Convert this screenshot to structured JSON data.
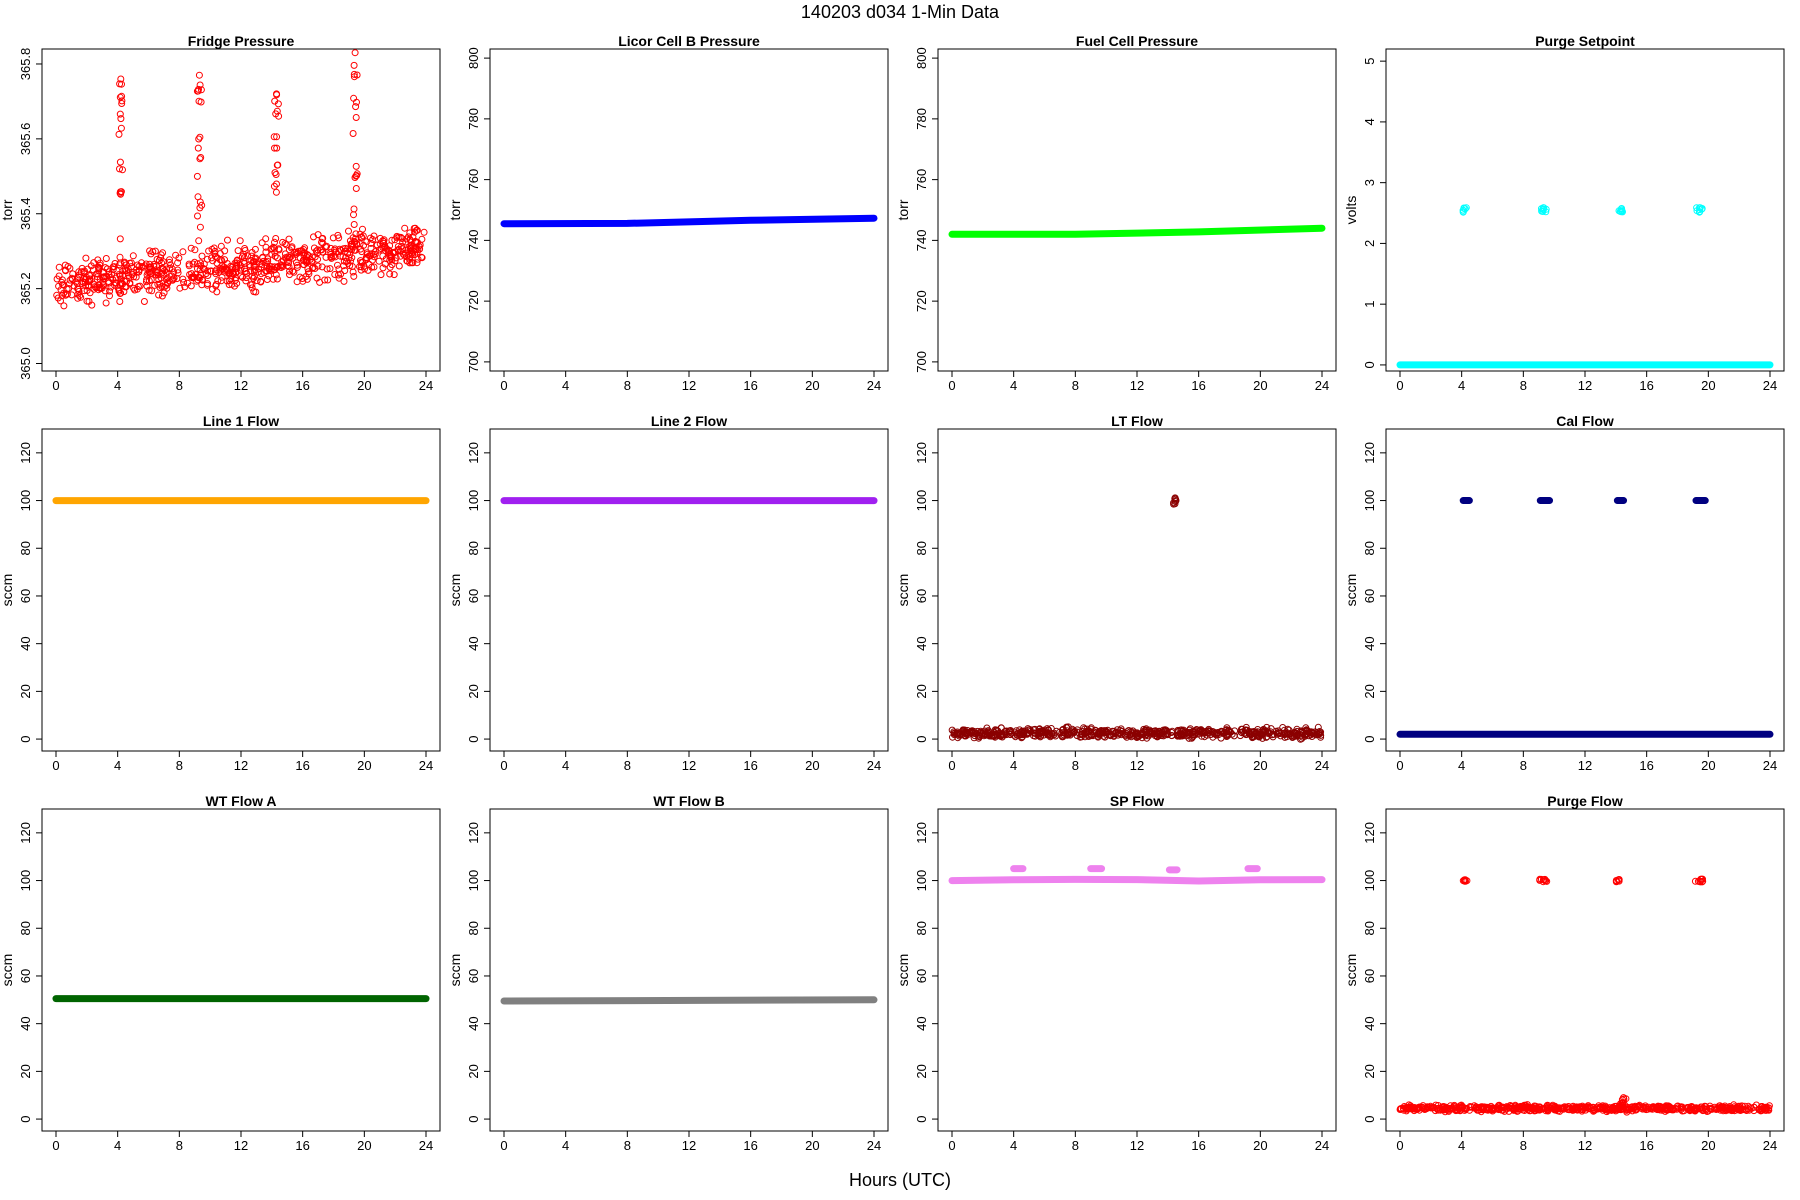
{
  "title": "140203    d034    1-Min Data",
  "xlabel": "Hours (UTC)",
  "chart_data": [
    {
      "type": "scatter",
      "title": "Fridge Pressure",
      "ylabel": "torr",
      "color": "#ff0000",
      "marker": "open-circle",
      "xlim": [
        0,
        24
      ],
      "ylim": [
        364.98,
        365.84
      ],
      "xticks": [
        0,
        4,
        8,
        12,
        16,
        20,
        24
      ],
      "yticks": [
        365.0,
        365.2,
        365.4,
        365.6,
        365.8
      ],
      "ytick_labels": [
        "365.0",
        "365.2",
        "365.4",
        "365.6",
        "365.8"
      ],
      "series": [
        {
          "kind": "scatter-band",
          "x_range": [
            0,
            24
          ],
          "y_start": 365.21,
          "y_end": 365.31,
          "spread": 0.085,
          "count": 800
        },
        {
          "kind": "spike",
          "x_center": 4.2,
          "x_width": 0.25,
          "y_from": 365.3,
          "y_to": 365.76,
          "count": 18
        },
        {
          "kind": "spike",
          "x_center": 9.3,
          "x_width": 0.3,
          "y_from": 365.3,
          "y_to": 365.77,
          "count": 20
        },
        {
          "kind": "spike",
          "x_center": 14.3,
          "x_width": 0.3,
          "y_from": 365.3,
          "y_to": 365.72,
          "count": 18
        },
        {
          "kind": "spike",
          "x_center": 19.4,
          "x_width": 0.3,
          "y_from": 365.3,
          "y_to": 365.83,
          "count": 20
        }
      ]
    },
    {
      "type": "scatter",
      "title": "Licor Cell B Pressure",
      "ylabel": "torr",
      "color": "#0000ff",
      "marker": "filled",
      "xlim": [
        0,
        24
      ],
      "ylim": [
        697,
        803
      ],
      "xticks": [
        0,
        4,
        8,
        12,
        16,
        20,
        24
      ],
      "yticks": [
        700,
        720,
        740,
        760,
        780,
        800
      ],
      "ytick_labels": [
        "700",
        "720",
        "740",
        "760",
        "780",
        "800"
      ],
      "series": [
        {
          "kind": "line",
          "x": [
            0,
            8,
            16,
            24
          ],
          "y": [
            745.5,
            745.6,
            746.6,
            747.3
          ]
        }
      ]
    },
    {
      "type": "scatter",
      "title": "Fuel Cell Pressure",
      "ylabel": "torr",
      "color": "#00ff00",
      "marker": "filled",
      "xlim": [
        0,
        24
      ],
      "ylim": [
        697,
        803
      ],
      "xticks": [
        0,
        4,
        8,
        12,
        16,
        20,
        24
      ],
      "yticks": [
        700,
        720,
        740,
        760,
        780,
        800
      ],
      "ytick_labels": [
        "700",
        "720",
        "740",
        "760",
        "780",
        "800"
      ],
      "series": [
        {
          "kind": "line",
          "x": [
            0,
            8,
            16,
            24
          ],
          "y": [
            742,
            742,
            742.8,
            744
          ]
        }
      ]
    },
    {
      "type": "scatter",
      "title": "Purge Setpoint",
      "ylabel": "volts",
      "color": "#00ffff",
      "marker": "open-circle",
      "xlim": [
        0,
        24
      ],
      "ylim": [
        -0.1,
        5.2
      ],
      "xticks": [
        0,
        4,
        8,
        12,
        16,
        20,
        24
      ],
      "yticks": [
        0,
        1,
        2,
        3,
        4,
        5
      ],
      "ytick_labels": [
        "0",
        "1",
        "2",
        "3",
        "4",
        "5"
      ],
      "series": [
        {
          "kind": "line",
          "x": [
            0,
            24
          ],
          "y": [
            0,
            0
          ]
        },
        {
          "kind": "cluster",
          "x_center": 4.2,
          "x_width": 0.25,
          "y": 2.55,
          "y_spread": 0.08,
          "count": 8
        },
        {
          "kind": "cluster",
          "x_center": 9.3,
          "x_width": 0.4,
          "y": 2.55,
          "y_spread": 0.08,
          "count": 10
        },
        {
          "kind": "cluster",
          "x_center": 14.3,
          "x_width": 0.3,
          "y": 2.55,
          "y_spread": 0.08,
          "count": 8
        },
        {
          "kind": "cluster",
          "x_center": 19.4,
          "x_width": 0.4,
          "y": 2.55,
          "y_spread": 0.08,
          "count": 10
        }
      ]
    },
    {
      "type": "scatter",
      "title": "Line 1 Flow",
      "ylabel": "sccm",
      "color": "#ffa500",
      "marker": "filled",
      "xlim": [
        0,
        24
      ],
      "ylim": [
        -5,
        130
      ],
      "xticks": [
        0,
        4,
        8,
        12,
        16,
        20,
        24
      ],
      "yticks": [
        0,
        20,
        40,
        60,
        80,
        100,
        120
      ],
      "ytick_labels": [
        "0",
        "20",
        "40",
        "60",
        "80",
        "100",
        "120"
      ],
      "series": [
        {
          "kind": "line",
          "x": [
            0,
            24
          ],
          "y": [
            100,
            100
          ]
        }
      ]
    },
    {
      "type": "scatter",
      "title": "Line 2 Flow",
      "ylabel": "sccm",
      "color": "#a020f0",
      "marker": "filled",
      "xlim": [
        0,
        24
      ],
      "ylim": [
        -5,
        130
      ],
      "xticks": [
        0,
        4,
        8,
        12,
        16,
        20,
        24
      ],
      "yticks": [
        0,
        20,
        40,
        60,
        80,
        100,
        120
      ],
      "ytick_labels": [
        "0",
        "20",
        "40",
        "60",
        "80",
        "100",
        "120"
      ],
      "series": [
        {
          "kind": "line",
          "x": [
            0,
            24
          ],
          "y": [
            100,
            100
          ]
        }
      ]
    },
    {
      "type": "scatter",
      "title": "LT Flow",
      "ylabel": "sccm",
      "color": "#8b0000",
      "marker": "open-circle",
      "xlim": [
        0,
        24
      ],
      "ylim": [
        -5,
        130
      ],
      "xticks": [
        0,
        4,
        8,
        12,
        16,
        20,
        24
      ],
      "yticks": [
        0,
        20,
        40,
        60,
        80,
        100,
        120
      ],
      "ytick_labels": [
        "0",
        "20",
        "40",
        "60",
        "80",
        "100",
        "120"
      ],
      "series": [
        {
          "kind": "scatter-band",
          "x_range": [
            0,
            14.3
          ],
          "y_start": 2.5,
          "y_end": 2.5,
          "spread": 3,
          "count": 400
        },
        {
          "kind": "scatter-band",
          "x_range": [
            14.6,
            24
          ],
          "y_start": 2.5,
          "y_end": 2.5,
          "spread": 3,
          "count": 260
        },
        {
          "kind": "cluster",
          "x_center": 14.45,
          "x_width": 0.2,
          "y": 100,
          "y_spread": 3,
          "count": 8
        }
      ]
    },
    {
      "type": "scatter",
      "title": "Cal Flow",
      "ylabel": "sccm",
      "color": "#000080",
      "marker": "filled",
      "xlim": [
        0,
        24
      ],
      "ylim": [
        -5,
        130
      ],
      "xticks": [
        0,
        4,
        8,
        12,
        16,
        20,
        24
      ],
      "yticks": [
        0,
        20,
        40,
        60,
        80,
        100,
        120
      ],
      "ytick_labels": [
        "0",
        "20",
        "40",
        "60",
        "80",
        "100",
        "120"
      ],
      "series": [
        {
          "kind": "line",
          "x": [
            0,
            24
          ],
          "y": [
            2,
            2
          ]
        },
        {
          "kind": "segment",
          "x": [
            4.1,
            4.5
          ],
          "y": 100
        },
        {
          "kind": "segment",
          "x": [
            9.1,
            9.7
          ],
          "y": 100
        },
        {
          "kind": "segment",
          "x": [
            14.1,
            14.5
          ],
          "y": 100
        },
        {
          "kind": "segment",
          "x": [
            19.2,
            19.8
          ],
          "y": 100
        }
      ]
    },
    {
      "type": "scatter",
      "title": "WT Flow A",
      "ylabel": "sccm",
      "color": "#006400",
      "marker": "filled",
      "xlim": [
        0,
        24
      ],
      "ylim": [
        -5,
        130
      ],
      "xticks": [
        0,
        4,
        8,
        12,
        16,
        20,
        24
      ],
      "yticks": [
        0,
        20,
        40,
        60,
        80,
        100,
        120
      ],
      "ytick_labels": [
        "0",
        "20",
        "40",
        "60",
        "80",
        "100",
        "120"
      ],
      "series": [
        {
          "kind": "line",
          "x": [
            0,
            24
          ],
          "y": [
            50.5,
            50.5
          ]
        }
      ]
    },
    {
      "type": "scatter",
      "title": "WT Flow B",
      "ylabel": "sccm",
      "color": "#808080",
      "marker": "filled",
      "xlim": [
        0,
        24
      ],
      "ylim": [
        -5,
        130
      ],
      "xticks": [
        0,
        4,
        8,
        12,
        16,
        20,
        24
      ],
      "yticks": [
        0,
        20,
        40,
        60,
        80,
        100,
        120
      ],
      "ytick_labels": [
        "0",
        "20",
        "40",
        "60",
        "80",
        "100",
        "120"
      ],
      "series": [
        {
          "kind": "line",
          "x": [
            0,
            24
          ],
          "y": [
            49.5,
            50
          ]
        }
      ]
    },
    {
      "type": "scatter",
      "title": "SP Flow",
      "ylabel": "sccm",
      "color": "#ee82ee",
      "marker": "filled",
      "xlim": [
        0,
        24
      ],
      "ylim": [
        -5,
        130
      ],
      "xticks": [
        0,
        4,
        8,
        12,
        16,
        20,
        24
      ],
      "yticks": [
        0,
        20,
        40,
        60,
        80,
        100,
        120
      ],
      "ytick_labels": [
        "0",
        "20",
        "40",
        "60",
        "80",
        "100",
        "120"
      ],
      "series": [
        {
          "kind": "line",
          "x": [
            0,
            4,
            8,
            12,
            16,
            20,
            24
          ],
          "y": [
            100,
            100.3,
            100.5,
            100.4,
            99.8,
            100.3,
            100.4
          ]
        },
        {
          "kind": "segment",
          "x": [
            4.0,
            4.6
          ],
          "y": 105
        },
        {
          "kind": "segment",
          "x": [
            9.0,
            9.7
          ],
          "y": 105
        },
        {
          "kind": "segment",
          "x": [
            14.1,
            14.6
          ],
          "y": 104.5
        },
        {
          "kind": "segment",
          "x": [
            19.2,
            19.8
          ],
          "y": 105
        }
      ]
    },
    {
      "type": "scatter",
      "title": "Purge Flow",
      "ylabel": "sccm",
      "color": "#ff0000",
      "marker": "open-circle",
      "xlim": [
        0,
        24
      ],
      "ylim": [
        -5,
        130
      ],
      "xticks": [
        0,
        4,
        8,
        12,
        16,
        20,
        24
      ],
      "yticks": [
        0,
        20,
        40,
        60,
        80,
        100,
        120
      ],
      "ytick_labels": [
        "0",
        "20",
        "40",
        "60",
        "80",
        "100",
        "120"
      ],
      "series": [
        {
          "kind": "scatter-band",
          "x_range": [
            0,
            24
          ],
          "y_start": 4.5,
          "y_end": 4.5,
          "spread": 1.8,
          "count": 650
        },
        {
          "kind": "spike",
          "x_center": 14.5,
          "x_width": 0.5,
          "y_from": 5,
          "y_to": 9,
          "count": 12
        },
        {
          "kind": "cluster",
          "x_center": 4.2,
          "x_width": 0.3,
          "y": 100,
          "y_spread": 1.2,
          "count": 8
        },
        {
          "kind": "cluster",
          "x_center": 9.3,
          "x_width": 0.5,
          "y": 100,
          "y_spread": 1.2,
          "count": 10
        },
        {
          "kind": "cluster",
          "x_center": 14.2,
          "x_width": 0.35,
          "y": 100,
          "y_spread": 1.2,
          "count": 8
        },
        {
          "kind": "cluster",
          "x_center": 19.4,
          "x_width": 0.5,
          "y": 100,
          "y_spread": 1.2,
          "count": 10
        }
      ]
    }
  ]
}
